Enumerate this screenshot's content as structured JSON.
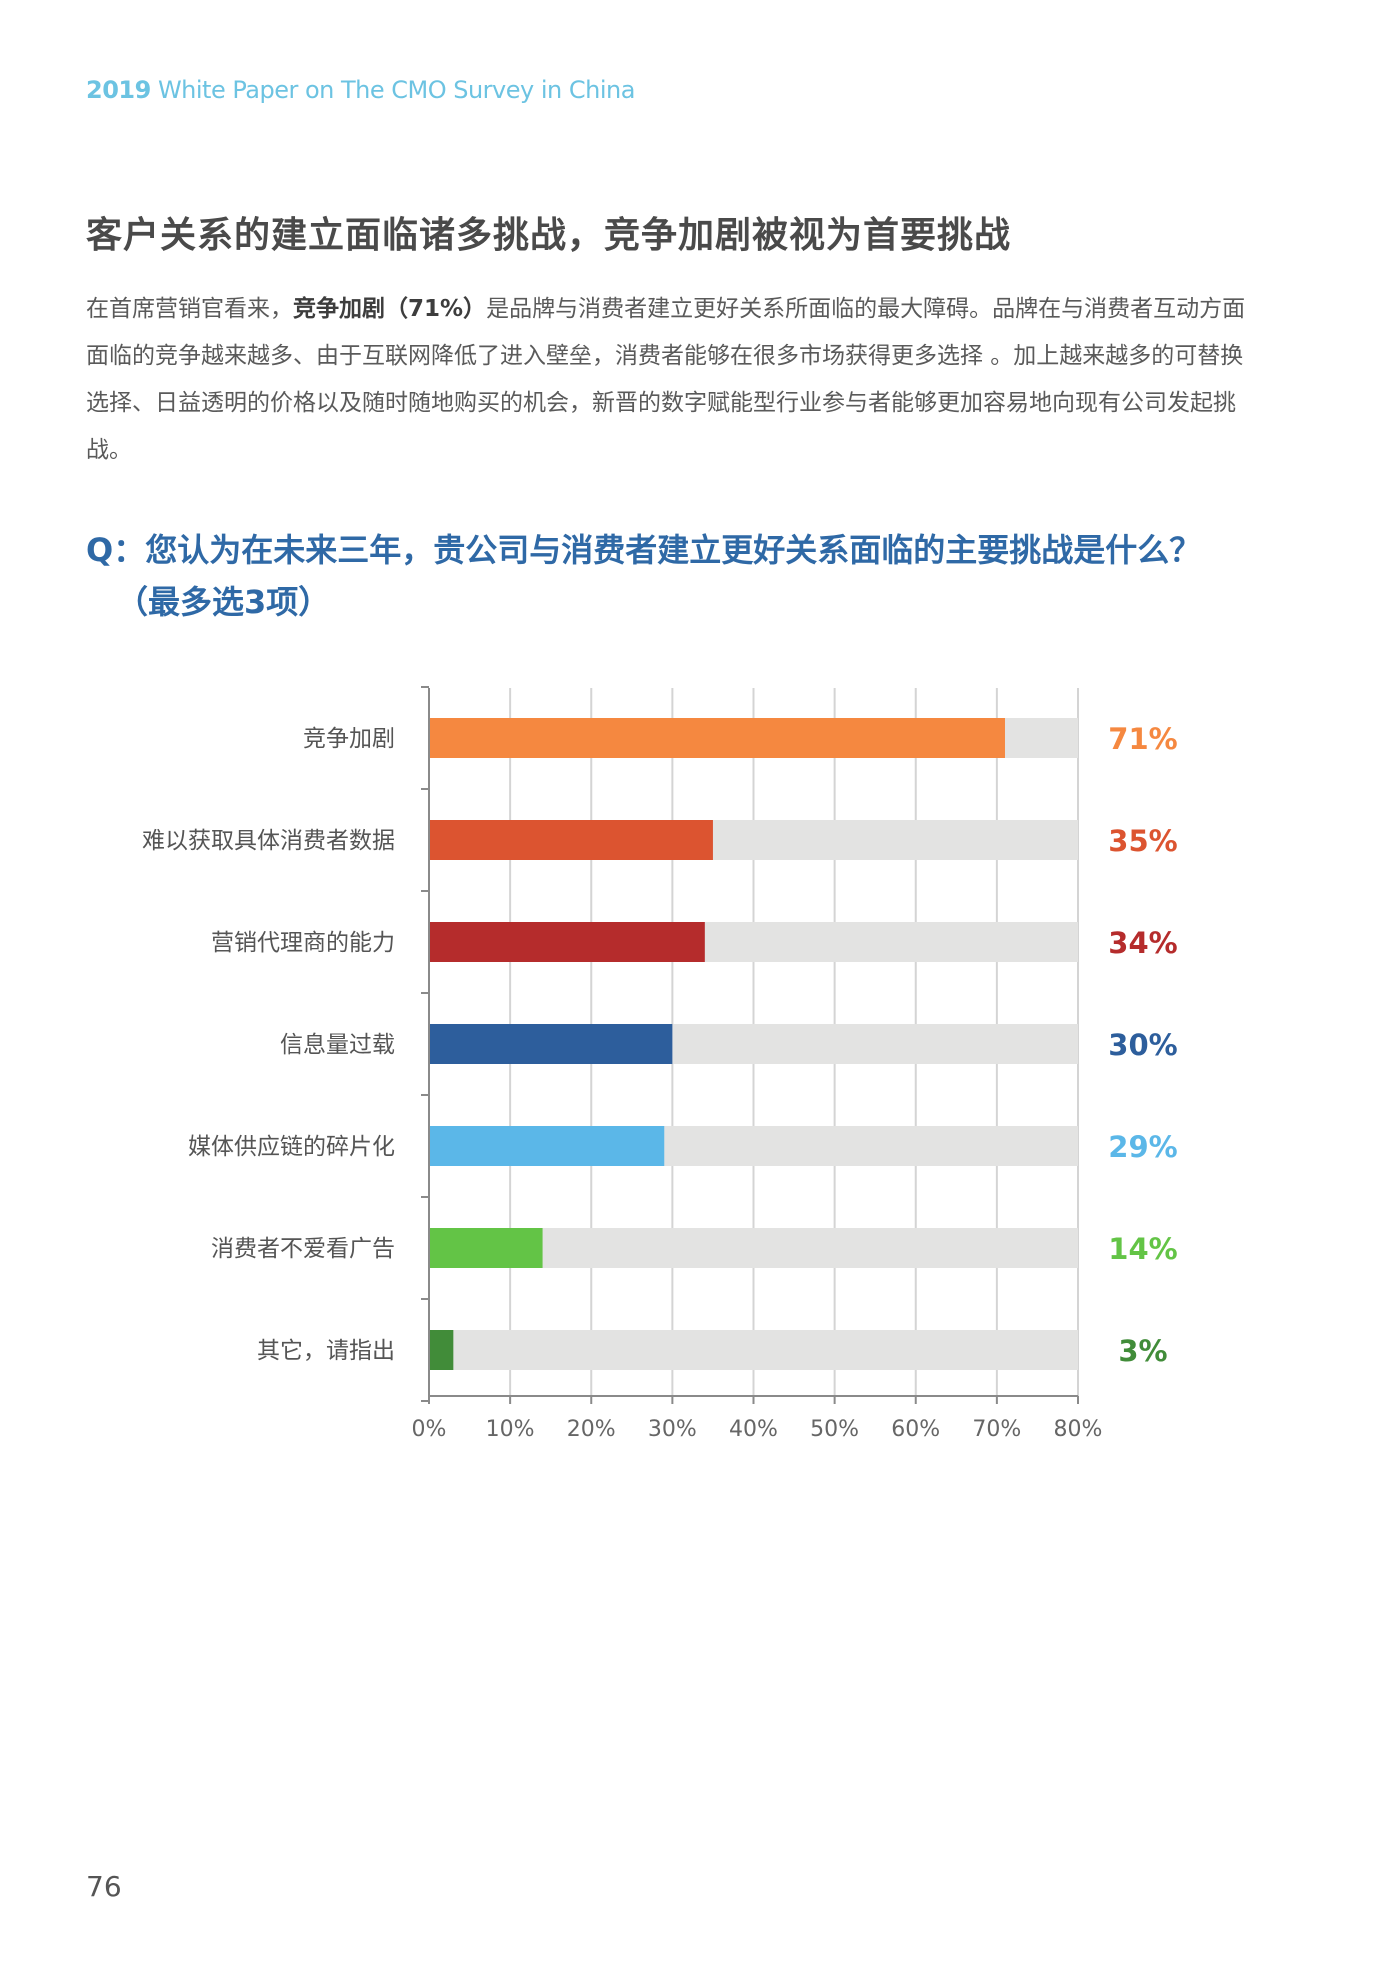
{
  "header": {
    "year": "2019",
    "title": "White Paper on The CMO Survey in China"
  },
  "section_title": "客户关系的建立面临诸多挑战，竞争加剧被视为首要挑战",
  "paragraph": {
    "before": "在首席营销官看来，",
    "bold": "竞争加剧（71%）",
    "after": "是品牌与消费者建立更好关系所面临的最大障碍。品牌在与消费者互动方面面临的竞争越来越多、由于互联网降低了进入壁垒，消费者能够在很多市场获得更多选择 。加上越来越多的可替换选择、日益透明的价格以及随时随地购买的机会，新晋的数字赋能型行业参与者能够更加容易地向现有公司发起挑战。"
  },
  "question": {
    "line1": "Q：您认为在未来三年，贵公司与消费者建立更好关系面临的主要挑战是什么？",
    "line2": "（最多选3项）"
  },
  "chart_data": {
    "type": "bar",
    "orientation": "horizontal",
    "categories": [
      "竞争加剧",
      "难以获取具体消费者数据",
      "营销代理商的能力",
      "信息量过载",
      "媒体供应链的碎片化",
      "消费者不爱看广告",
      "其它，请指出"
    ],
    "values": [
      71,
      35,
      34,
      30,
      29,
      14,
      3
    ],
    "value_labels": [
      "71%",
      "35%",
      "34%",
      "30%",
      "29%",
      "14%",
      "3%"
    ],
    "colors": [
      "#f58840",
      "#dc5430",
      "#b52c2c",
      "#2d5e9c",
      "#5bb7e8",
      "#63c446",
      "#418c39"
    ],
    "track_color": "#e3e3e2",
    "xlim": [
      0,
      80
    ],
    "x_ticks": [
      0,
      10,
      20,
      30,
      40,
      50,
      60,
      70,
      80
    ],
    "x_tick_labels": [
      "0%",
      "10%",
      "20%",
      "30%",
      "40%",
      "50%",
      "60%",
      "70%",
      "80%"
    ],
    "grid": true
  },
  "page_number": "76"
}
